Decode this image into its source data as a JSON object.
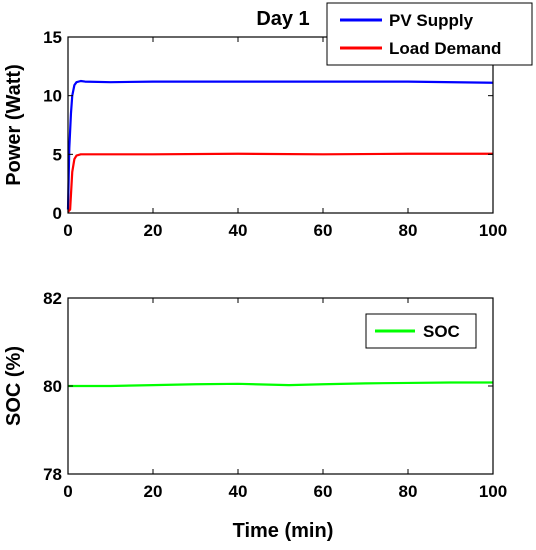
{
  "chart_data": [
    {
      "type": "line",
      "title": "Day 1",
      "xlabel": "",
      "ylabel": "Power (Watt)",
      "xlim": [
        0,
        100
      ],
      "ylim": [
        0,
        15
      ],
      "x_ticks": [
        "0",
        "20",
        "40",
        "60",
        "80",
        "100"
      ],
      "y_ticks": [
        "0",
        "5",
        "10",
        "15"
      ],
      "grid": false,
      "legend_position": "top-right",
      "series": [
        {
          "name": "PV Supply",
          "color": "#0000ff",
          "points": [
            [
              0,
              0.3
            ],
            [
              0.3,
              5.5
            ],
            [
              0.7,
              8.5
            ],
            [
              1.0,
              10.0
            ],
            [
              1.5,
              10.9
            ],
            [
              2.0,
              11.15
            ],
            [
              3.0,
              11.25
            ],
            [
              4.0,
              11.2
            ],
            [
              10,
              11.15
            ],
            [
              20,
              11.2
            ],
            [
              40,
              11.2
            ],
            [
              60,
              11.2
            ],
            [
              80,
              11.2
            ],
            [
              100,
              11.1
            ]
          ]
        },
        {
          "name": "Load Demand",
          "color": "#ff0000",
          "points": [
            [
              0,
              0.1
            ],
            [
              0.5,
              0.3
            ],
            [
              1.0,
              3.5
            ],
            [
              1.5,
              4.6
            ],
            [
              2.0,
              4.9
            ],
            [
              3.0,
              5.0
            ],
            [
              5,
              5.0
            ],
            [
              20,
              5.0
            ],
            [
              40,
              5.05
            ],
            [
              60,
              5.0
            ],
            [
              80,
              5.05
            ],
            [
              100,
              5.05
            ]
          ]
        }
      ]
    },
    {
      "type": "line",
      "title": "",
      "xlabel": "Time (min)",
      "ylabel": "SOC (%)",
      "xlim": [
        0,
        100
      ],
      "ylim": [
        78,
        82
      ],
      "x_ticks": [
        "0",
        "20",
        "40",
        "60",
        "80",
        "100"
      ],
      "y_ticks": [
        "78",
        "80",
        "82"
      ],
      "grid": false,
      "legend_position": "top-right",
      "series": [
        {
          "name": "SOC",
          "color": "#00ff00",
          "points": [
            [
              0,
              80.0
            ],
            [
              10,
              80.0
            ],
            [
              20,
              80.02
            ],
            [
              30,
              80.04
            ],
            [
              40,
              80.05
            ],
            [
              52,
              80.02
            ],
            [
              60,
              80.04
            ],
            [
              70,
              80.06
            ],
            [
              80,
              80.07
            ],
            [
              90,
              80.08
            ],
            [
              100,
              80.08
            ]
          ]
        }
      ]
    }
  ]
}
